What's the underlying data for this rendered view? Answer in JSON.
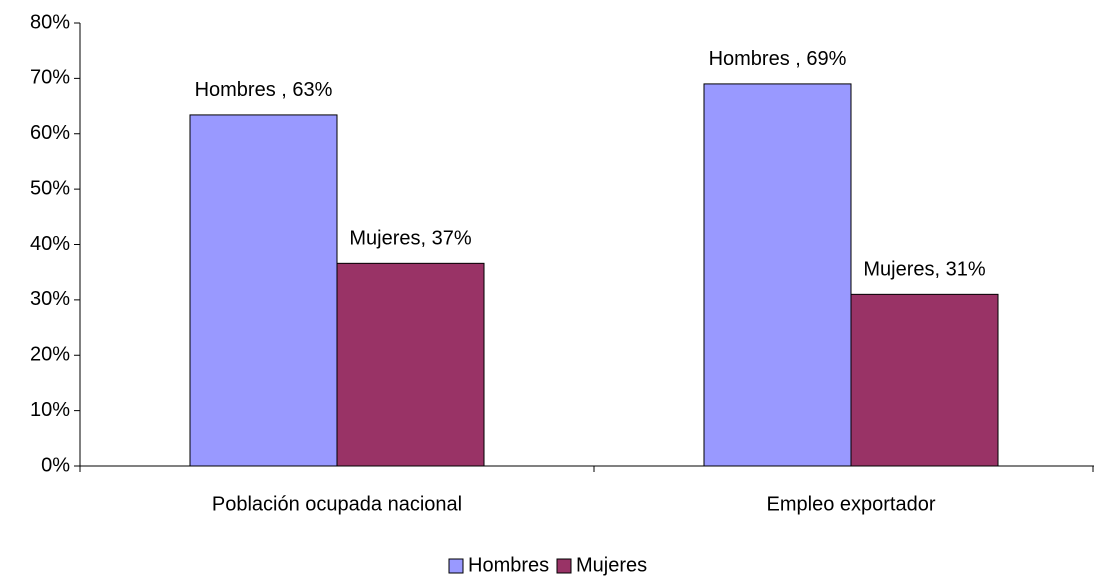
{
  "chart_data": {
    "type": "bar",
    "categories": [
      "Población ocupada nacional",
      "Empleo exportador"
    ],
    "series": [
      {
        "name": "Hombres",
        "color": "#9999ff",
        "values": [
          63.4,
          69
        ],
        "value_labels": [
          "Hombres , 63%",
          "Hombres , 69%"
        ]
      },
      {
        "name": "Mujeres",
        "color": "#993366",
        "values": [
          36.6,
          31
        ],
        "value_labels": [
          "Mujeres, 37%",
          "Mujeres, 31%"
        ]
      }
    ],
    "ylim": [
      0,
      80
    ],
    "yticks": [
      {
        "value": 0,
        "label": "0%"
      },
      {
        "value": 10,
        "label": "10%"
      },
      {
        "value": 20,
        "label": "20%"
      },
      {
        "value": 30,
        "label": "30%"
      },
      {
        "value": 40,
        "label": "40%"
      },
      {
        "value": 50,
        "label": "50%"
      },
      {
        "value": 60,
        "label": "60%"
      },
      {
        "value": 70,
        "label": "70%"
      },
      {
        "value": 80,
        "label": "80%"
      }
    ],
    "grid": false,
    "legend": "bottom"
  }
}
